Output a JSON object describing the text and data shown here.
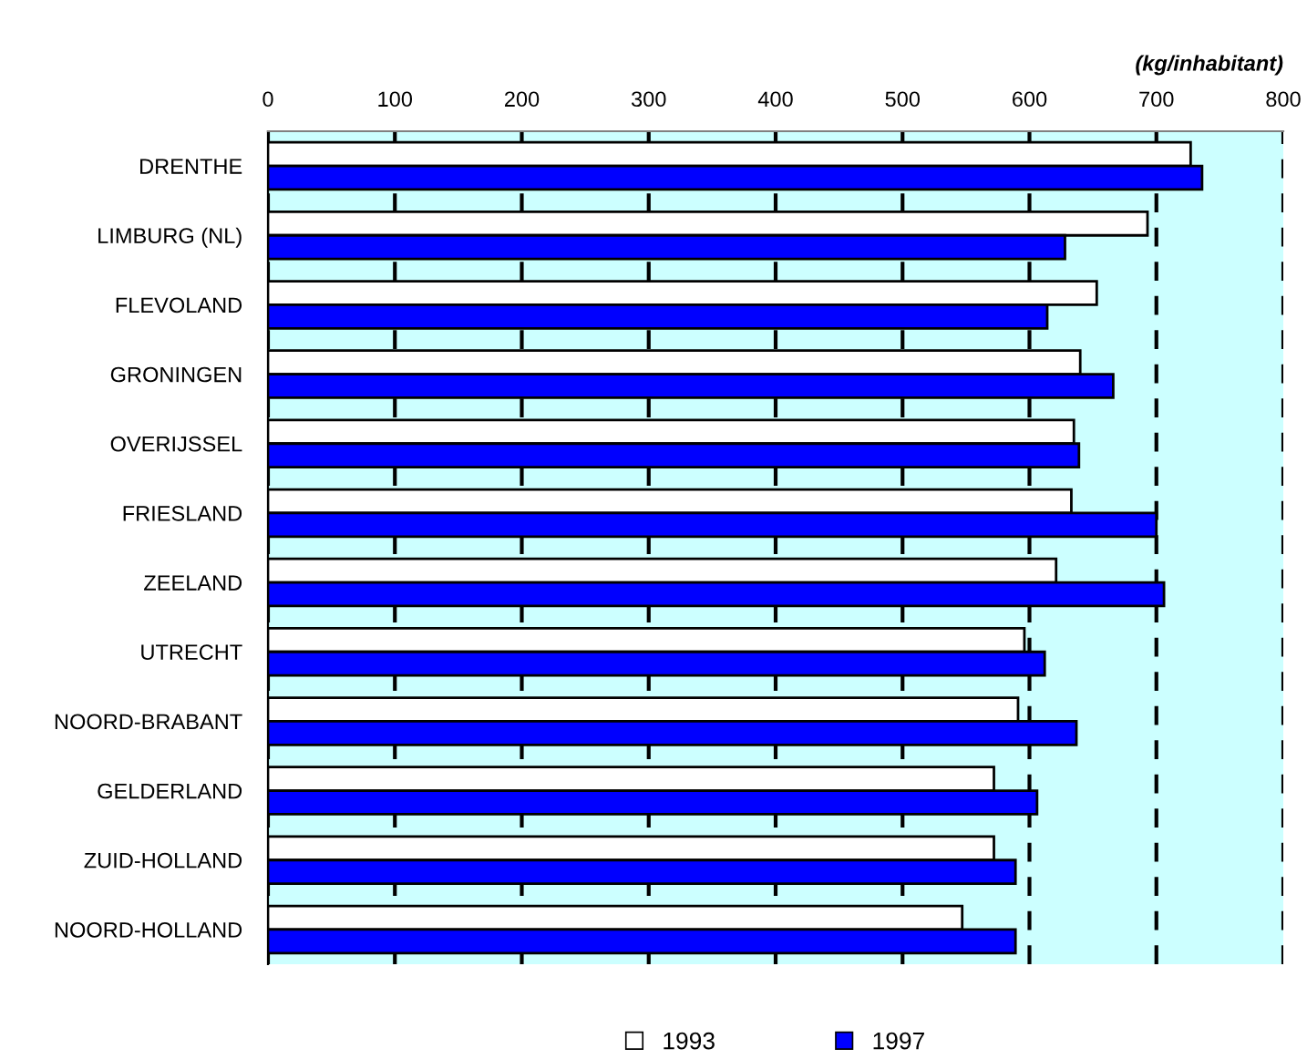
{
  "chart_data": {
    "type": "bar",
    "orientation": "horizontal",
    "xlabel": "(kg/inhabitant)",
    "categories": [
      "DRENTHE",
      "LIMBURG (NL)",
      "FLEVOLAND",
      "GRONINGEN",
      "OVERIJSSEL",
      "FRIESLAND",
      "ZEELAND",
      "UTRECHT",
      "NOORD-BRABANT",
      "GELDERLAND",
      "ZUID-HOLLAND",
      "NOORD-HOLLAND"
    ],
    "series": [
      {
        "name": "1993",
        "color": "#ffffff",
        "values": [
          727,
          693,
          653,
          640,
          635,
          633,
          621,
          596,
          591,
          572,
          572,
          547
        ]
      },
      {
        "name": "1997",
        "color": "#0000ff",
        "values": [
          736,
          628,
          614,
          666,
          639,
          700,
          706,
          612,
          637,
          606,
          589,
          589
        ]
      }
    ],
    "xlim": [
      0,
      800
    ],
    "xticks": [
      0,
      100,
      200,
      300,
      400,
      500,
      600,
      700,
      800
    ],
    "grid": "x",
    "legend": "bottom"
  }
}
